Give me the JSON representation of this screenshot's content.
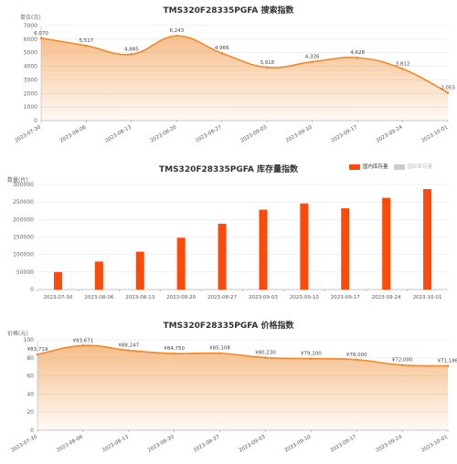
{
  "chart_data": [
    {
      "type": "area",
      "title": "TMS320F28335PGFA 搜索指数",
      "ylabel": "",
      "unit_label": "单位(次)",
      "ylim": [
        0,
        7000
      ],
      "yticks": [
        0,
        1000,
        2000,
        3000,
        4000,
        5000,
        6000,
        7000
      ],
      "categories": [
        "2023-07-30",
        "2023-08-06",
        "2023-08-13",
        "2023-08-20",
        "2023-08-27",
        "2023-09-03",
        "2023-09-10",
        "2023-09-17",
        "2023-09-24",
        "2023-10-01"
      ],
      "values": [
        6070,
        5517,
        4885,
        6243,
        4966,
        3918,
        4326,
        4628,
        3812,
        2053
      ],
      "value_labels": [
        "6,070",
        "5,517",
        "4,885",
        "6,243",
        "4,966",
        "3,918",
        "4,326",
        "4,628",
        "3,812",
        "2,053"
      ],
      "color": "#f0892b"
    },
    {
      "type": "bar",
      "title": "TMS320F28335PGFA 库存量指数",
      "unit_label": "数量(片)",
      "ylim": [
        0,
        300000
      ],
      "yticks": [
        0,
        50000,
        100000,
        150000,
        200000,
        250000,
        300000
      ],
      "categories": [
        "2023-07-30",
        "2023-08-06",
        "2023-08-13",
        "2023-08-20",
        "2023-08-27",
        "2023-09-03",
        "2023-09-10",
        "2023-09-17",
        "2023-09-24",
        "2023-10-01"
      ],
      "series": [
        {
          "name": "国内库存量",
          "values": [
            50000,
            80000,
            108000,
            148000,
            188000,
            228000,
            246000,
            232000,
            262000,
            287000
          ]
        }
      ],
      "legend": [
        "国内库存量",
        "国际库存量"
      ],
      "legend_position": "top-right",
      "color": "#fc4a0a",
      "legend_dim_color": "#cccccc"
    },
    {
      "type": "area",
      "title": "TMS320F28335PGFA 价格指数",
      "unit_label": "价格(元)",
      "ylim": [
        0,
        100
      ],
      "yticks": [
        0,
        20,
        40,
        60,
        80,
        100
      ],
      "categories": [
        "2023-07-30",
        "2023-08-06",
        "2023-08-13",
        "2023-08-20",
        "2023-08-27",
        "2023-09-03",
        "2023-09-10",
        "2023-09-17",
        "2023-09-24",
        "2023-10-01"
      ],
      "values": [
        83.719,
        93.671,
        88.247,
        84.75,
        85.108,
        80.23,
        79.1,
        78.0,
        72.0,
        71.186
      ],
      "value_labels": [
        "¥83,719",
        "¥93,671",
        "¥88,247",
        "¥84,750",
        "¥85,108",
        "¥80,230",
        "¥79,100",
        "¥78,000",
        "¥72,000",
        "¥71,186"
      ],
      "color": "#f0892b"
    }
  ]
}
